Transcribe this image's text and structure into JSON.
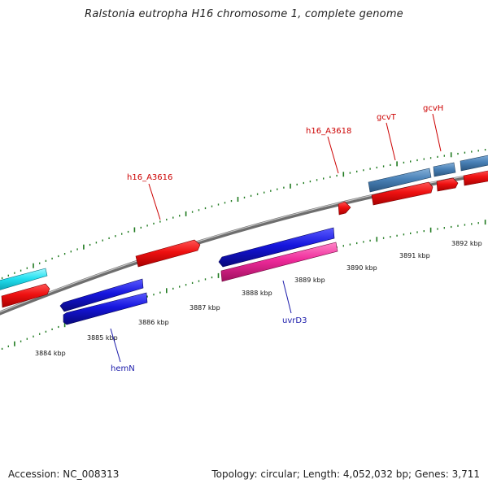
{
  "title": "Ralstonia eutropha H16 chromosome 1, complete genome",
  "footer": {
    "accession": "Accession: NC_008313",
    "summary": "Topology: circular; Length: 4,052,032 bp; Genes: 3,711"
  },
  "colors": {
    "backbone": "#8c8c8c",
    "tick": "#1f7a1f",
    "cds_forward": "#ee1111",
    "cds_reverse": "#1515dd",
    "cds_steel": "#4a82b8",
    "cds_cyan": "#22e0f0",
    "cds_magenta": "#ee2a9a",
    "label_red": "#cc0000",
    "label_blue": "#1a1aaa"
  },
  "scale": {
    "unit": "kbp",
    "tick_labels": [
      "3884 kbp",
      "3885 kbp",
      "3886 kbp",
      "3887 kbp",
      "3888 kbp",
      "3889 kbp",
      "3890 kbp",
      "3891 kbp",
      "3892 kbp"
    ]
  },
  "gene_labels": [
    {
      "name": "h16_A3616",
      "strand": "forward"
    },
    {
      "name": "h16_A3618",
      "strand": "forward"
    },
    {
      "name": "gcvT",
      "strand": "forward"
    },
    {
      "name": "gcvH",
      "strand": "forward"
    },
    {
      "name": "hemN",
      "strand": "reverse"
    },
    {
      "name": "uvrD3",
      "strand": "reverse"
    }
  ]
}
